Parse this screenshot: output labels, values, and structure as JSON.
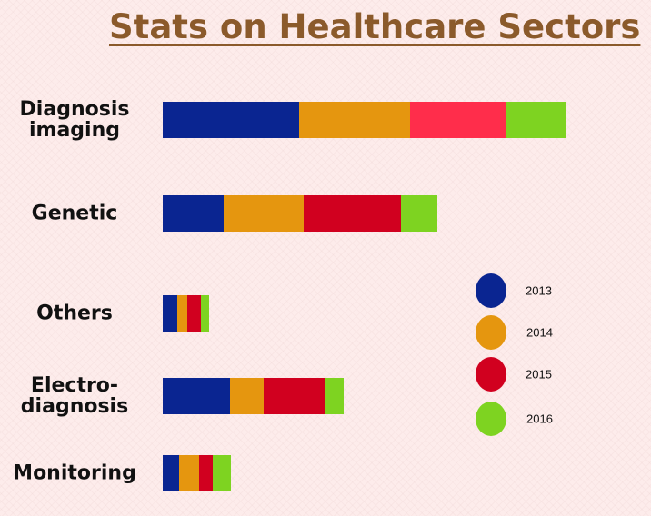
{
  "chart_data": {
    "type": "bar",
    "orientation": "horizontal",
    "stacked": true,
    "title": "Stats on Healthcare Sectors",
    "categories": [
      "Diagnosis imaging",
      "Genetic",
      "Others",
      "Electro-diagnosis",
      "Monitoring"
    ],
    "category_labels": [
      [
        "Diagnosis",
        "imaging"
      ],
      [
        "Genetic"
      ],
      [
        "Others"
      ],
      [
        "Electro-",
        "diagnosis"
      ],
      [
        "Monitoring"
      ]
    ],
    "series": [
      {
        "name": "2013",
        "color": "#0a2591",
        "values": [
          150,
          67,
          16,
          74,
          18
        ]
      },
      {
        "name": "2014",
        "color": "#e5960f",
        "values": [
          122,
          88,
          11,
          37,
          22
        ]
      },
      {
        "name": "2015",
        "colors": [
          "#ff2d4b",
          "#d1001f",
          "#d1001f",
          "#d1001f",
          "#d1001f"
        ],
        "color": "#d1001f",
        "values": [
          106,
          107,
          15,
          67,
          15
        ]
      },
      {
        "name": "2016",
        "color": "#7ed321",
        "values": [
          66,
          40,
          9,
          21,
          20
        ]
      }
    ],
    "xlim": [
      0,
      540
    ],
    "grid": false,
    "axes_visible": false,
    "legend_position": "right"
  }
}
